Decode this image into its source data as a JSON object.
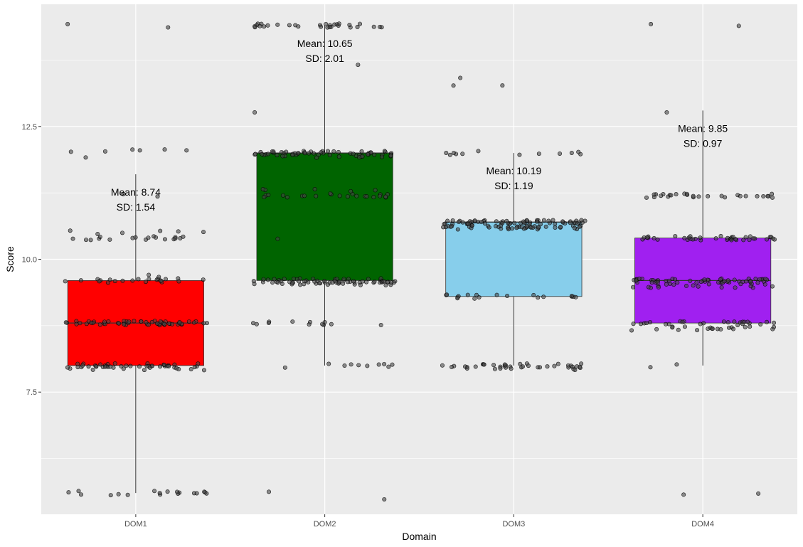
{
  "chart_data": {
    "type": "box",
    "title": "",
    "xlabel": "Domain",
    "ylabel": "Score",
    "categories": [
      "DOM1",
      "DOM2",
      "DOM3",
      "DOM4"
    ],
    "ylim": [
      5.2,
      14.8
    ],
    "y_ticks": [
      {
        "value": 7.5,
        "label": "7.5"
      },
      {
        "value": 10.0,
        "label": "10.0"
      },
      {
        "value": 12.5,
        "label": "12.5"
      }
    ],
    "y_minor_ticks": [
      6.25,
      8.75,
      11.25,
      13.75
    ],
    "grid": true,
    "legend": "none",
    "boxes": [
      {
        "category": "DOM1",
        "color": "#ff0000",
        "whisker_low": 5.6,
        "q1": 8.0,
        "median": 8.8,
        "q3": 9.6,
        "whisker_high": 11.6,
        "mean_label": "Mean: 8.74",
        "sd_label": "SD: 1.54",
        "point_levels": [
          [
            8.8,
            55
          ],
          [
            9.6,
            22
          ],
          [
            8.0,
            28
          ],
          [
            7.95,
            22
          ],
          [
            10.4,
            18
          ],
          [
            10.5,
            6
          ],
          [
            12.05,
            6
          ],
          [
            5.6,
            18
          ],
          [
            14.4,
            2
          ],
          [
            11.2,
            2
          ],
          [
            11.95,
            1
          ],
          [
            9.7,
            2
          ]
        ]
      },
      {
        "category": "DOM2",
        "color": "#006400",
        "whisker_low": 8.0,
        "q1": 9.6,
        "median": 12.0,
        "q3": 12.0,
        "whisker_high": 14.4,
        "mean_label": "Mean: 10.65",
        "sd_label": "SD: 2.01",
        "point_levels": [
          [
            12.0,
            45
          ],
          [
            11.95,
            15
          ],
          [
            9.6,
            40
          ],
          [
            9.55,
            35
          ],
          [
            11.2,
            22
          ],
          [
            8.0,
            10
          ],
          [
            8.8,
            12
          ],
          [
            14.4,
            30
          ],
          [
            13.7,
            1
          ],
          [
            12.8,
            1
          ],
          [
            11.3,
            5
          ],
          [
            10.4,
            1
          ],
          [
            5.6,
            1
          ],
          [
            5.5,
            1
          ]
        ]
      },
      {
        "category": "DOM3",
        "color": "#87ceeb",
        "whisker_low": 8.0,
        "q1": 9.3,
        "median": 10.7,
        "q3": 10.7,
        "whisker_high": 12.0,
        "mean_label": "Mean: 10.19",
        "sd_label": "SD: 1.19",
        "point_levels": [
          [
            10.7,
            60
          ],
          [
            10.6,
            45
          ],
          [
            9.3,
            18
          ],
          [
            8.0,
            28
          ],
          [
            7.95,
            12
          ],
          [
            12.0,
            12
          ],
          [
            13.3,
            1
          ],
          [
            13.25,
            1
          ],
          [
            13.4,
            1
          ]
        ]
      },
      {
        "category": "DOM4",
        "color": "#a020f0",
        "whisker_low": 8.0,
        "q1": 8.8,
        "median": 9.6,
        "q3": 10.4,
        "whisker_high": 12.8,
        "mean_label": "Mean: 9.85",
        "sd_label": "SD: 0.97",
        "point_levels": [
          [
            9.6,
            55
          ],
          [
            9.5,
            20
          ],
          [
            10.4,
            40
          ],
          [
            8.8,
            25
          ],
          [
            8.7,
            20
          ],
          [
            11.2,
            28
          ],
          [
            8.0,
            2
          ],
          [
            12.8,
            1
          ],
          [
            14.4,
            2
          ],
          [
            5.6,
            2
          ]
        ]
      }
    ]
  }
}
